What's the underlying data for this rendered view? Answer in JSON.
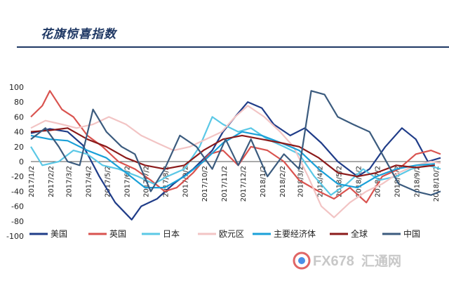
{
  "page": {
    "title": "花旗惊喜指数"
  },
  "watermark": {
    "brand": "FX678",
    "suffix": "汇通网"
  },
  "chart_data": {
    "type": "line",
    "title": "花旗惊喜指数",
    "ylim": [
      -100,
      100
    ],
    "yticks": [
      100,
      80,
      60,
      40,
      20,
      0,
      -20,
      -40,
      -60,
      -80,
      -100
    ],
    "xlim": [
      "2017-01-02",
      "2018-10-10"
    ],
    "xtick_labels": [
      "2017/1/2",
      "2017/2/2",
      "2017/3/2",
      "2017/4/2",
      "2017/5/2",
      "2017/6/2",
      "2017/7/2",
      "2017/8/2",
      "2017/9/2",
      "2017/10/2",
      "2017/11/2",
      "2017/12/2",
      "2018/1/2",
      "2018/2/2",
      "2018/3/2",
      "2018/4/2",
      "2018/5/2",
      "2018/6/2",
      "2018/7/2",
      "2018/8/2",
      "2018/9/2",
      "2018/10/2"
    ],
    "legend_position": "bottom",
    "grid": false,
    "series": [
      {
        "name": "美国",
        "color": "#1f3c88",
        "points": [
          [
            "2017-01-02",
            38
          ],
          [
            "2017-02-01",
            44
          ],
          [
            "2017-03-01",
            40
          ],
          [
            "2017-03-25",
            22
          ],
          [
            "2017-04-20",
            -20
          ],
          [
            "2017-05-15",
            -55
          ],
          [
            "2017-06-10",
            -78
          ],
          [
            "2017-06-25",
            -60
          ],
          [
            "2017-07-20",
            -50
          ],
          [
            "2017-08-15",
            -30
          ],
          [
            "2017-09-15",
            -10
          ],
          [
            "2017-10-15",
            15
          ],
          [
            "2017-11-01",
            40
          ],
          [
            "2017-11-20",
            60
          ],
          [
            "2017-12-10",
            80
          ],
          [
            "2018-01-01",
            72
          ],
          [
            "2018-01-20",
            50
          ],
          [
            "2018-02-15",
            35
          ],
          [
            "2018-03-10",
            45
          ],
          [
            "2018-04-05",
            25
          ],
          [
            "2018-05-01",
            0
          ],
          [
            "2018-06-01",
            -20
          ],
          [
            "2018-06-20",
            -10
          ],
          [
            "2018-07-15",
            20
          ],
          [
            "2018-08-10",
            45
          ],
          [
            "2018-09-01",
            30
          ],
          [
            "2018-09-20",
            0
          ],
          [
            "2018-10-10",
            5
          ]
        ]
      },
      {
        "name": "英国",
        "color": "#d9534f",
        "points": [
          [
            "2017-01-02",
            60
          ],
          [
            "2017-01-20",
            75
          ],
          [
            "2017-02-01",
            95
          ],
          [
            "2017-02-20",
            70
          ],
          [
            "2017-03-10",
            60
          ],
          [
            "2017-04-01",
            35
          ],
          [
            "2017-04-25",
            20
          ],
          [
            "2017-05-20",
            0
          ],
          [
            "2017-06-15",
            -10
          ],
          [
            "2017-07-10",
            -25
          ],
          [
            "2017-08-01",
            -40
          ],
          [
            "2017-08-20",
            -35
          ],
          [
            "2017-09-15",
            -15
          ],
          [
            "2017-10-10",
            10
          ],
          [
            "2017-11-01",
            15
          ],
          [
            "2017-11-25",
            -5
          ],
          [
            "2017-12-15",
            20
          ],
          [
            "2018-01-10",
            15
          ],
          [
            "2018-02-05",
            0
          ],
          [
            "2018-03-01",
            -25
          ],
          [
            "2018-04-01",
            -40
          ],
          [
            "2018-04-25",
            -50
          ],
          [
            "2018-05-20",
            -35
          ],
          [
            "2018-06-15",
            -55
          ],
          [
            "2018-07-10",
            -20
          ],
          [
            "2018-08-05",
            -10
          ],
          [
            "2018-09-01",
            10
          ],
          [
            "2018-09-25",
            15
          ],
          [
            "2018-10-10",
            10
          ]
        ]
      },
      {
        "name": "日本",
        "color": "#5bc8e6",
        "points": [
          [
            "2017-01-02",
            20
          ],
          [
            "2017-01-20",
            -5
          ],
          [
            "2017-02-15",
            0
          ],
          [
            "2017-03-10",
            15
          ],
          [
            "2017-04-01",
            10
          ],
          [
            "2017-04-25",
            -5
          ],
          [
            "2017-05-20",
            -10
          ],
          [
            "2017-06-20",
            -20
          ],
          [
            "2017-07-15",
            -30
          ],
          [
            "2017-08-05",
            -20
          ],
          [
            "2017-09-01",
            -10
          ],
          [
            "2017-09-25",
            20
          ],
          [
            "2017-10-15",
            60
          ],
          [
            "2017-11-01",
            50
          ],
          [
            "2017-11-25",
            40
          ],
          [
            "2017-12-15",
            45
          ],
          [
            "2018-01-10",
            30
          ],
          [
            "2018-02-05",
            20
          ],
          [
            "2018-03-01",
            10
          ],
          [
            "2018-03-25",
            -20
          ],
          [
            "2018-04-20",
            -45
          ],
          [
            "2018-05-15",
            -30
          ],
          [
            "2018-06-10",
            -10
          ],
          [
            "2018-07-05",
            -25
          ],
          [
            "2018-08-01",
            -20
          ],
          [
            "2018-08-25",
            -10
          ],
          [
            "2018-09-20",
            -5
          ],
          [
            "2018-10-10",
            -10
          ]
        ]
      },
      {
        "name": "欧元区",
        "color": "#f2c4c4",
        "points": [
          [
            "2017-01-02",
            45
          ],
          [
            "2017-01-25",
            55
          ],
          [
            "2017-02-20",
            50
          ],
          [
            "2017-03-15",
            45
          ],
          [
            "2017-04-10",
            50
          ],
          [
            "2017-05-05",
            60
          ],
          [
            "2017-06-01",
            50
          ],
          [
            "2017-06-25",
            35
          ],
          [
            "2017-07-20",
            25
          ],
          [
            "2017-08-15",
            15
          ],
          [
            "2017-09-10",
            20
          ],
          [
            "2017-10-05",
            30
          ],
          [
            "2017-10-30",
            40
          ],
          [
            "2017-11-20",
            60
          ],
          [
            "2017-12-10",
            75
          ],
          [
            "2018-01-05",
            60
          ],
          [
            "2018-01-30",
            40
          ],
          [
            "2018-02-20",
            20
          ],
          [
            "2018-03-15",
            -20
          ],
          [
            "2018-04-05",
            -60
          ],
          [
            "2018-04-25",
            -75
          ],
          [
            "2018-05-20",
            -55
          ],
          [
            "2018-06-15",
            -40
          ],
          [
            "2018-07-10",
            -30
          ],
          [
            "2018-08-05",
            -15
          ],
          [
            "2018-09-01",
            -5
          ],
          [
            "2018-09-25",
            0
          ],
          [
            "2018-10-10",
            -2
          ]
        ]
      },
      {
        "name": "主要经济体",
        "color": "#1aa0d8",
        "points": [
          [
            "2017-01-02",
            35
          ],
          [
            "2017-02-01",
            30
          ],
          [
            "2017-03-01",
            28
          ],
          [
            "2017-04-01",
            15
          ],
          [
            "2017-05-01",
            5
          ],
          [
            "2017-06-01",
            -15
          ],
          [
            "2017-07-01",
            -35
          ],
          [
            "2017-08-01",
            -35
          ],
          [
            "2017-09-01",
            -20
          ],
          [
            "2017-10-01",
            0
          ],
          [
            "2017-11-01",
            25
          ],
          [
            "2017-12-01",
            40
          ],
          [
            "2018-01-01",
            35
          ],
          [
            "2018-02-01",
            25
          ],
          [
            "2018-03-01",
            15
          ],
          [
            "2018-04-01",
            -10
          ],
          [
            "2018-05-01",
            -30
          ],
          [
            "2018-06-01",
            -35
          ],
          [
            "2018-07-01",
            -20
          ],
          [
            "2018-08-01",
            -10
          ],
          [
            "2018-09-01",
            -5
          ],
          [
            "2018-10-01",
            -3
          ]
        ]
      },
      {
        "name": "全球",
        "color": "#8b1a1a",
        "points": [
          [
            "2017-01-02",
            40
          ],
          [
            "2017-02-01",
            42
          ],
          [
            "2017-03-01",
            45
          ],
          [
            "2017-04-01",
            30
          ],
          [
            "2017-05-01",
            20
          ],
          [
            "2017-06-01",
            5
          ],
          [
            "2017-07-01",
            -5
          ],
          [
            "2017-08-01",
            -10
          ],
          [
            "2017-09-01",
            -5
          ],
          [
            "2017-10-01",
            15
          ],
          [
            "2017-11-01",
            30
          ],
          [
            "2017-12-01",
            35
          ],
          [
            "2018-01-01",
            30
          ],
          [
            "2018-02-01",
            25
          ],
          [
            "2018-03-01",
            20
          ],
          [
            "2018-04-01",
            5
          ],
          [
            "2018-05-01",
            -15
          ],
          [
            "2018-06-01",
            -20
          ],
          [
            "2018-07-01",
            -15
          ],
          [
            "2018-08-01",
            -5
          ],
          [
            "2018-09-01",
            -8
          ],
          [
            "2018-10-01",
            -5
          ]
        ]
      },
      {
        "name": "中国",
        "color": "#3b5b7e",
        "points": [
          [
            "2017-01-02",
            30
          ],
          [
            "2017-01-25",
            45
          ],
          [
            "2017-02-15",
            20
          ],
          [
            "2017-03-01",
            0
          ],
          [
            "2017-03-20",
            -5
          ],
          [
            "2017-04-10",
            70
          ],
          [
            "2017-05-01",
            40
          ],
          [
            "2017-05-25",
            20
          ],
          [
            "2017-06-15",
            10
          ],
          [
            "2017-07-10",
            -40
          ],
          [
            "2017-08-01",
            -10
          ],
          [
            "2017-08-25",
            35
          ],
          [
            "2017-09-20",
            20
          ],
          [
            "2017-10-15",
            -10
          ],
          [
            "2017-11-05",
            30
          ],
          [
            "2017-11-25",
            -5
          ],
          [
            "2017-12-15",
            30
          ],
          [
            "2018-01-10",
            -20
          ],
          [
            "2018-02-05",
            10
          ],
          [
            "2018-03-01",
            -10
          ],
          [
            "2018-03-20",
            95
          ],
          [
            "2018-04-10",
            90
          ],
          [
            "2018-05-01",
            60
          ],
          [
            "2018-05-25",
            50
          ],
          [
            "2018-06-20",
            40
          ],
          [
            "2018-07-10",
            10
          ],
          [
            "2018-08-05",
            -30
          ],
          [
            "2018-09-01",
            -40
          ],
          [
            "2018-09-25",
            -45
          ],
          [
            "2018-10-10",
            -40
          ]
        ]
      }
    ]
  }
}
